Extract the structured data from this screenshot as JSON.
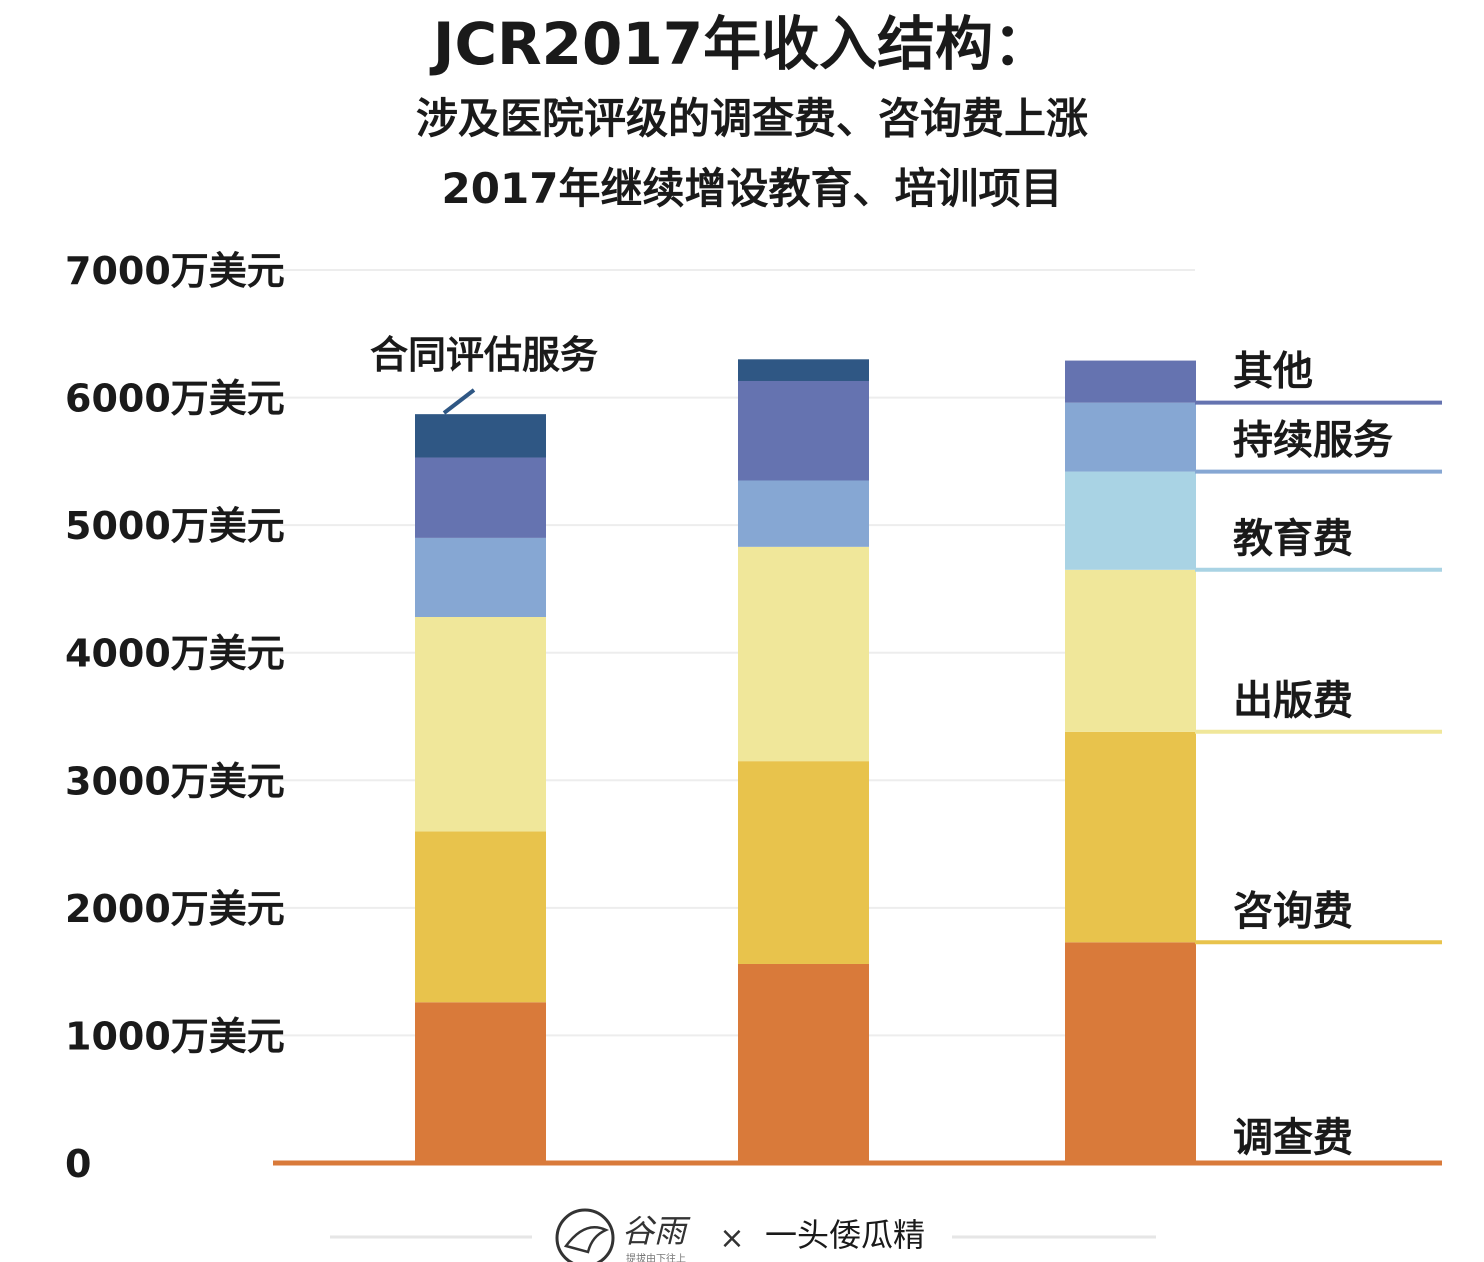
{
  "chart_data": {
    "type": "bar",
    "stacked": true,
    "title": "JCR2017年收入结构：",
    "subtitle_lines": [
      "涉及医院评级的调查费、咨询费上涨",
      "2017年继续增设教育、培训项目"
    ],
    "categories": [
      "",
      "",
      ""
    ],
    "y_ticks": [
      "0",
      "1000万美元",
      "2000万美元",
      "3000万美元",
      "4000万美元",
      "5000万美元",
      "6000万美元",
      "7000万美元"
    ],
    "ylim": [
      0,
      7000
    ],
    "y_unit": "万美元",
    "grid": true,
    "series": [
      {
        "name": "调查费",
        "color": "#d97a3a",
        "values": [
          1260,
          1560,
          1730
        ]
      },
      {
        "name": "咨询费",
        "color": "#e8c34c",
        "values": [
          1340,
          1590,
          1650
        ]
      },
      {
        "name": "出版费",
        "color": "#f0e79a",
        "values": [
          1680,
          1680,
          1270
        ]
      },
      {
        "name": "教育费",
        "color": "#a9d3e4",
        "values": [
          0,
          0,
          770
        ]
      },
      {
        "name": "持续服务",
        "color": "#86a7d3",
        "values": [
          620,
          520,
          540
        ]
      },
      {
        "name": "其他",
        "color": "#6573b0",
        "values": [
          630,
          780,
          330
        ]
      },
      {
        "name": "合同评估服务",
        "color": "#2f5784",
        "values": [
          340,
          170,
          0
        ]
      }
    ],
    "legend_placement": "right",
    "annotation": "合同评估服务"
  },
  "footer": {
    "logo_text": "谷雨",
    "logo_tagline": "提拔由下往上",
    "separator": "×",
    "partner": "一头倭瓜精"
  }
}
